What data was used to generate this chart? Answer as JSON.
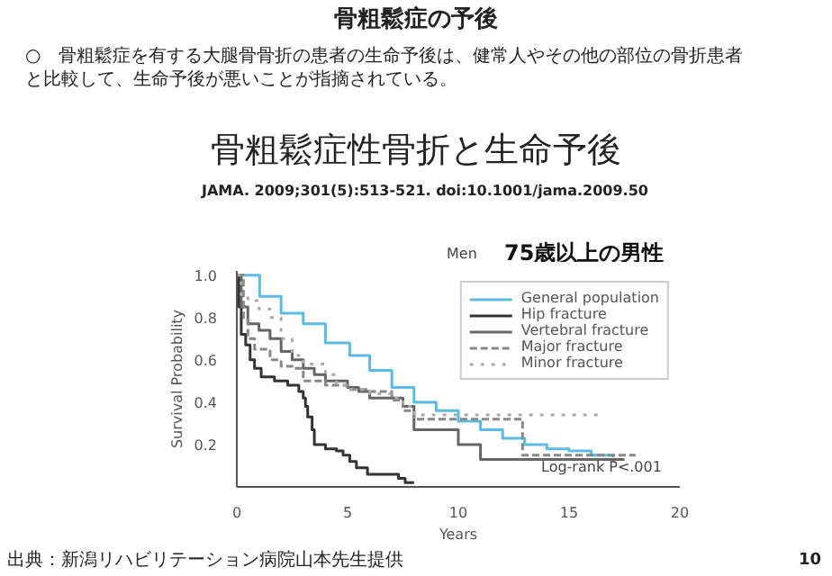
{
  "chart_data": {
    "type": "step",
    "title": "骨粗鬆症の予後",
    "subtitle": "骨粗鬆症性骨折と生命予後",
    "annotations": [
      "○　骨粗鬆症を有する大腿骨骨折の患者の生命予後は、健常人やその他の部位の骨折患者と比較して、生命予後が悪いことが指摘されている。",
      "JAMA. 2009;301(5):513-521. doi:10.1001/jama.2009.50",
      "Men",
      "75歳以上の男性",
      "Log-rank P<.001",
      "出典：新潟リハビリテーション病院山本先生提供",
      "10"
    ],
    "xlabel": "Years",
    "ylabel": "Survival Probability",
    "xlim": [
      0,
      20
    ],
    "ylim": [
      0,
      1.02
    ],
    "xticks": [
      0,
      5,
      10,
      15,
      20
    ],
    "yticks": [
      0.2,
      0.4,
      0.6,
      0.8,
      {
        "value": 1.0,
        "label": "1.0"
      }
    ],
    "grid": false,
    "legend": "top right",
    "marker": "none",
    "series": [
      {
        "name": "General population",
        "color": "#5bbbe8",
        "line_style": "solid",
        "x": [
          0,
          1.03,
          2,
          3,
          4,
          5.1,
          6,
          7,
          8,
          9,
          10,
          11,
          12,
          13,
          14,
          15,
          16,
          17
        ],
        "values": [
          1.0,
          0.9,
          0.82,
          0.77,
          0.68,
          0.62,
          0.55,
          0.47,
          0.4,
          0.36,
          0.31,
          0.27,
          0.23,
          0.2,
          0.18,
          0.17,
          0.15,
          0.14
        ]
      },
      {
        "name": "Hip fracture",
        "color": "#333333",
        "line_style": "solid",
        "x": [
          0,
          0.1,
          0.2,
          0.4,
          0.6,
          0.8,
          1.1,
          1.7,
          2.3,
          2.8,
          3.0,
          3.1,
          3.2,
          3.4,
          3.5,
          4.0,
          4.5,
          4.8,
          5.1,
          5.4,
          5.9,
          7.3,
          7.6,
          8.0
        ],
        "values": [
          1.0,
          0.85,
          0.72,
          0.67,
          0.6,
          0.56,
          0.52,
          0.5,
          0.48,
          0.45,
          0.42,
          0.38,
          0.33,
          0.27,
          0.2,
          0.18,
          0.17,
          0.15,
          0.12,
          0.09,
          0.06,
          0.04,
          0.02,
          0.02
        ]
      },
      {
        "name": "Vertebral fracture",
        "color": "#666666",
        "line_style": "solid",
        "x": [
          0,
          0.2,
          0.5,
          1,
          1.5,
          2,
          2.5,
          3,
          3.5,
          4,
          5,
          5.5,
          6,
          7,
          7.5,
          8,
          9,
          10,
          11,
          17.5
        ],
        "values": [
          1.0,
          0.85,
          0.77,
          0.74,
          0.7,
          0.64,
          0.6,
          0.56,
          0.53,
          0.5,
          0.47,
          0.45,
          0.42,
          0.42,
          0.38,
          0.27,
          0.27,
          0.2,
          0.13,
          0.13
        ]
      },
      {
        "name": "Major fracture",
        "color": "#888888",
        "line_style": "dashed",
        "x": [
          0,
          0.3,
          0.5,
          0.8,
          1.5,
          2,
          2.5,
          3,
          4,
          5,
          6,
          7,
          7.5,
          8,
          12.9,
          18
        ],
        "values": [
          1.0,
          0.8,
          0.7,
          0.65,
          0.6,
          0.57,
          0.56,
          0.5,
          0.48,
          0.46,
          0.45,
          0.41,
          0.36,
          0.32,
          0.15,
          0.15
        ]
      },
      {
        "name": "Minor fracture",
        "color": "#aaaaaa",
        "line_style": "dotted",
        "x": [
          0,
          0.2,
          0.5,
          1,
          1.5,
          2,
          2.5,
          3,
          4,
          4.5,
          5,
          6,
          7,
          7.5,
          8,
          16.3
        ],
        "values": [
          1.0,
          0.9,
          0.88,
          0.84,
          0.8,
          0.7,
          0.62,
          0.58,
          0.53,
          0.48,
          0.46,
          0.44,
          0.42,
          0.38,
          0.34,
          0.34
        ]
      }
    ]
  }
}
